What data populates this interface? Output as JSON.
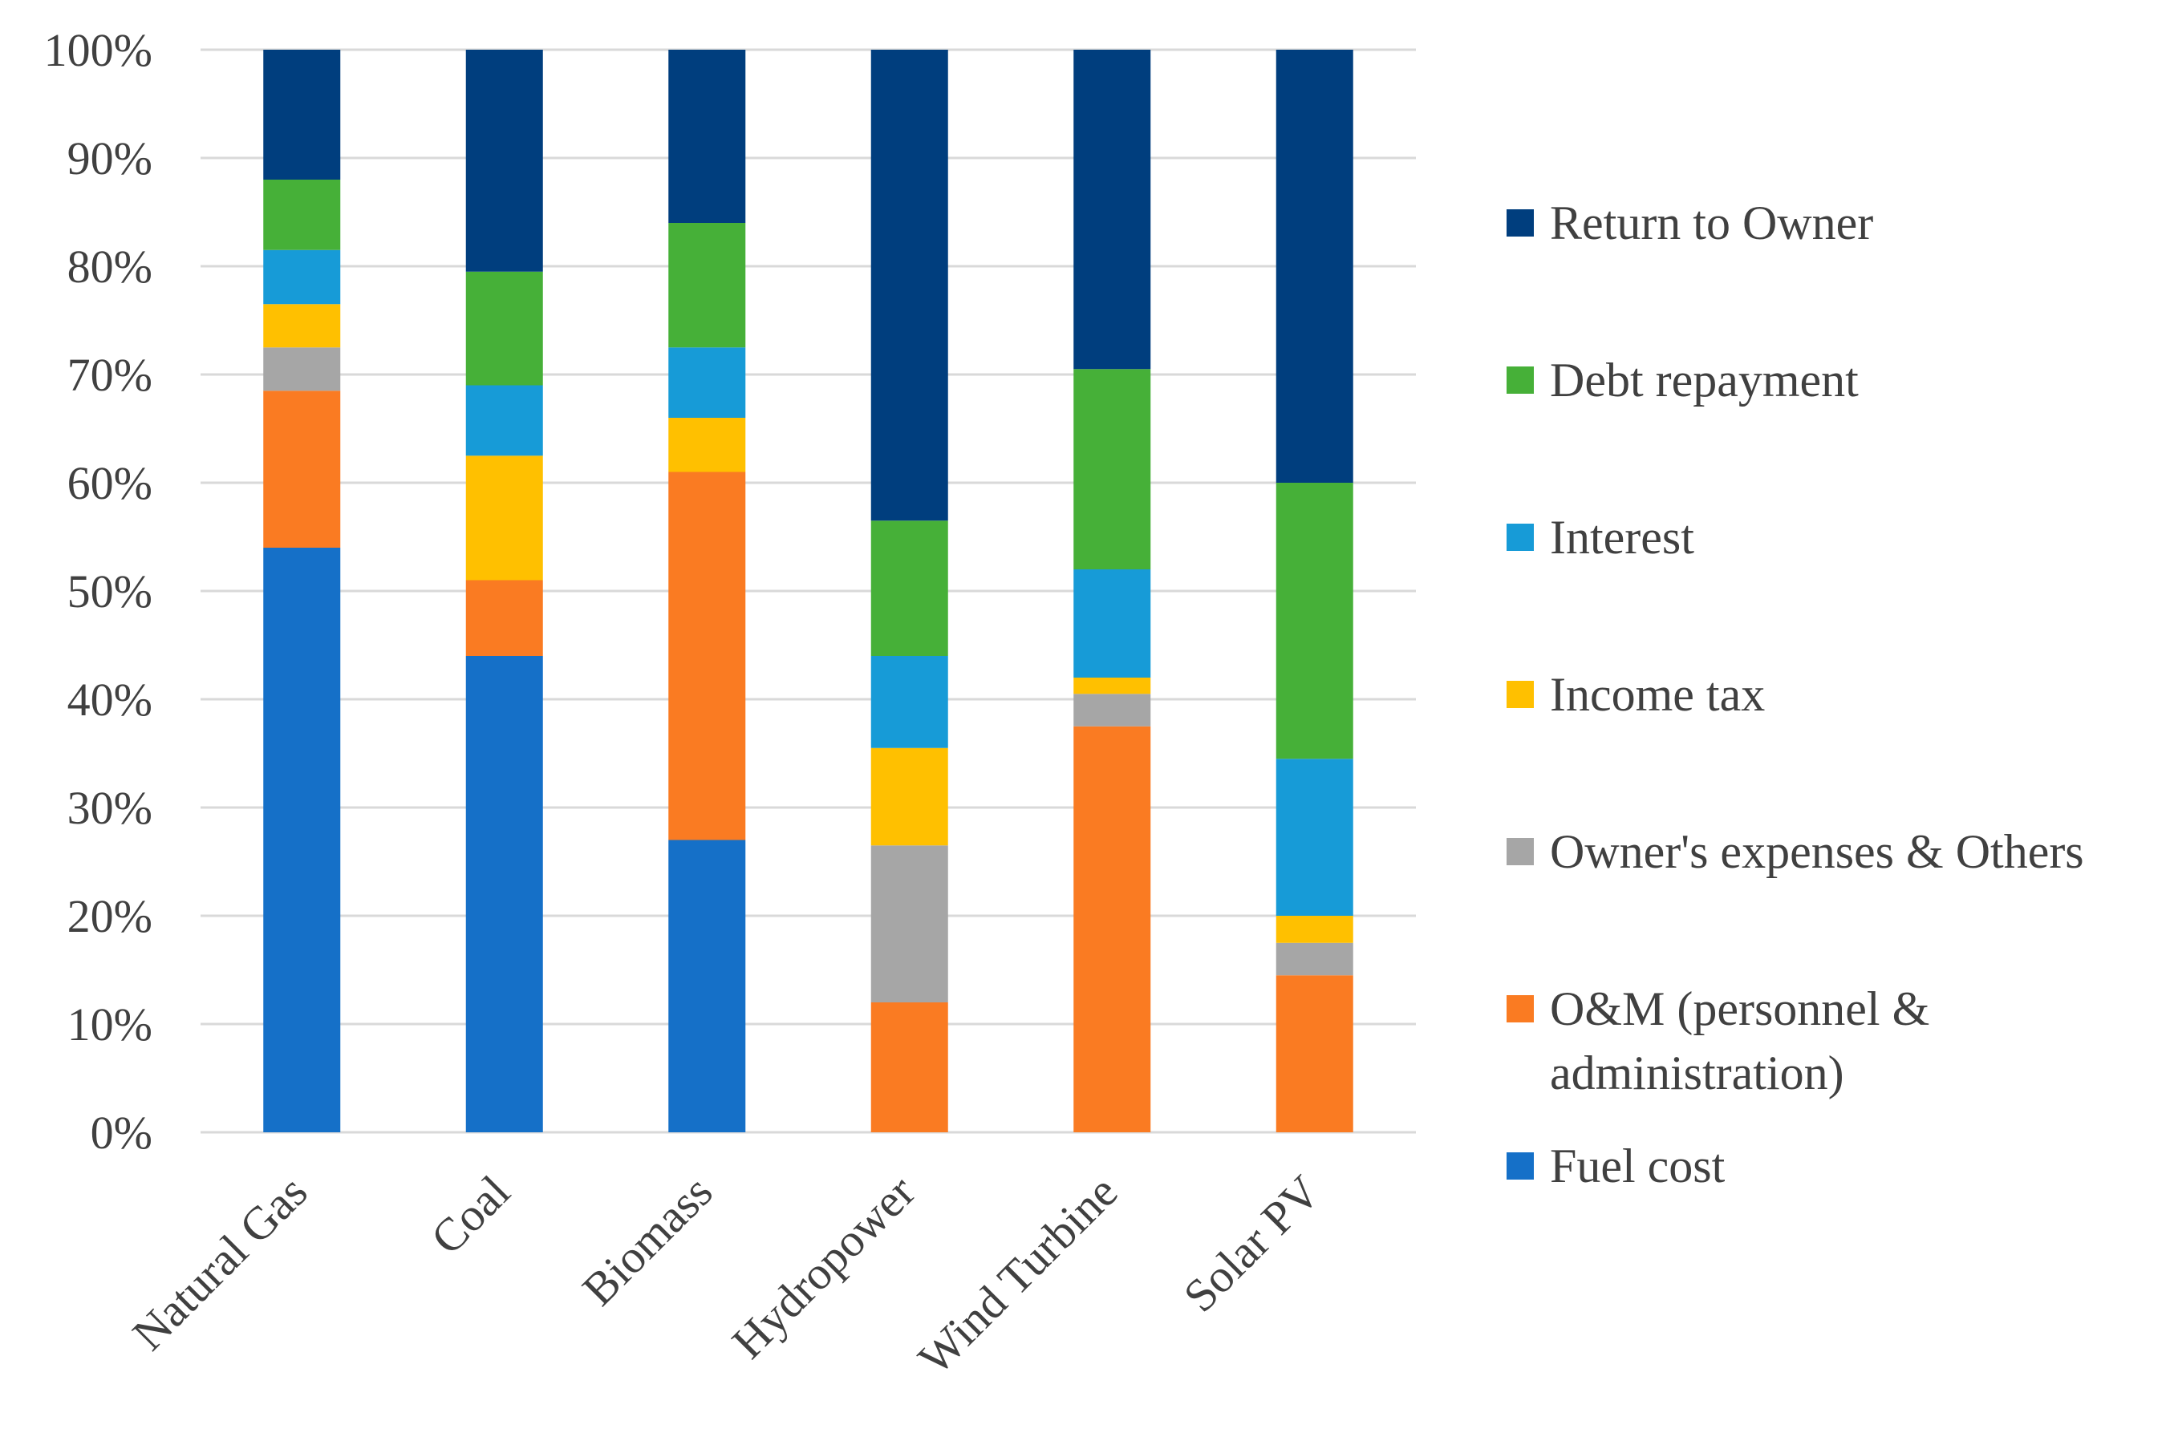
{
  "chart_data": {
    "type": "bar",
    "stacked": true,
    "normalized": true,
    "title": "",
    "xlabel": "",
    "ylabel": "",
    "ylim": [
      0,
      100
    ],
    "yticks": [
      "0%",
      "10%",
      "20%",
      "30%",
      "40%",
      "50%",
      "60%",
      "70%",
      "80%",
      "90%",
      "100%"
    ],
    "grid": true,
    "legend_position": "right",
    "categories": [
      "Natural Gas",
      "Coal",
      "Biomass",
      "Hydropower",
      "Wind Turbine",
      "Solar PV"
    ],
    "series": [
      {
        "name": "Fuel cost",
        "color": "#1570c8",
        "values": [
          54,
          44,
          27,
          0,
          0,
          0
        ]
      },
      {
        "name": "O&M (personnel & administration)",
        "color": "#fa7b22",
        "values": [
          14.5,
          7,
          34,
          12,
          37.5,
          14.5
        ]
      },
      {
        "name": "Owner's expenses & Others",
        "color": "#a6a6a6",
        "values": [
          4,
          0,
          0,
          14.5,
          3,
          3
        ]
      },
      {
        "name": "Income tax",
        "color": "#ffc000",
        "values": [
          4,
          11.5,
          5,
          9,
          1.5,
          2.5
        ]
      },
      {
        "name": "Interest",
        "color": "#179bd7",
        "values": [
          5,
          6.5,
          6.5,
          8.5,
          10,
          14.5
        ]
      },
      {
        "name": "Debt repayment",
        "color": "#46b038",
        "values": [
          6.5,
          10.5,
          11.5,
          12.5,
          18.5,
          25.5
        ]
      },
      {
        "name": "Return to Owner",
        "color": "#003e7e",
        "values": [
          12,
          20.5,
          16,
          43.5,
          29.5,
          40
        ]
      }
    ],
    "legend_order": [
      "Return to Owner",
      "Debt repayment",
      "Interest",
      "Income tax",
      "Owner's expenses & Others",
      "O&M (personnel & administration)",
      "Fuel cost"
    ],
    "legend_lines": {
      "O&M (personnel & administration)": [
        "O&M (personnel &",
        "administration)"
      ]
    }
  }
}
